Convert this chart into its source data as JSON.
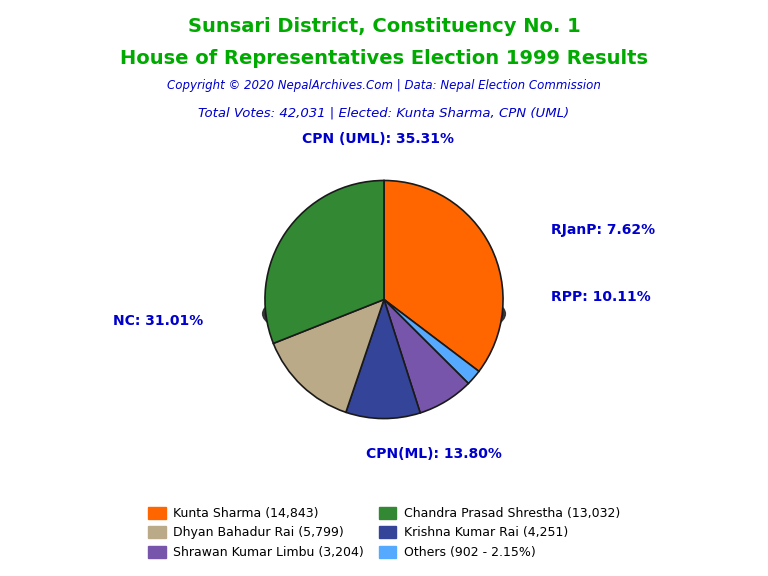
{
  "title_line1": "Sunsari District, Constituency No. 1",
  "title_line2": "House of Representatives Election 1999 Results",
  "title_color": "#00aa00",
  "copyright_text": "Copyright © 2020 NepalArchives.Com | Data: Nepal Election Commission",
  "copyright_color": "#0000cc",
  "subtitle_text": "Total Votes: 42,031 | Elected: Kunta Sharma, CPN (UML)",
  "subtitle_color": "#0000cc",
  "slices": [
    {
      "label": "CPN (UML): 35.31%",
      "value": 35.31,
      "color": "#ff6600"
    },
    {
      "label": "Others: 2.15%",
      "value": 2.15,
      "color": "#55aaff"
    },
    {
      "label": "RJanP: 7.62%",
      "value": 7.62,
      "color": "#7755aa"
    },
    {
      "label": "RPP: 10.11%",
      "value": 10.11,
      "color": "#334499"
    },
    {
      "label": "CPN(ML): 13.80%",
      "value": 13.8,
      "color": "#bbaa88"
    },
    {
      "label": "NC: 31.01%",
      "value": 31.01,
      "color": "#338833"
    }
  ],
  "legend_items": [
    {
      "label": "Kunta Sharma (14,843)",
      "color": "#ff6600"
    },
    {
      "label": "Dhyan Bahadur Rai (5,799)",
      "color": "#bbaa88"
    },
    {
      "label": "Shrawan Kumar Limbu (3,204)",
      "color": "#7755aa"
    },
    {
      "label": "Chandra Prasad Shrestha (13,032)",
      "color": "#338833"
    },
    {
      "label": "Krishna Kumar Rai (4,251)",
      "color": "#334499"
    },
    {
      "label": "Others (902 - 2.15%)",
      "color": "#55aaff"
    }
  ],
  "label_color": "#0000cc",
  "background_color": "#ffffff",
  "label_fontsize": 10,
  "legend_fontsize": 9
}
